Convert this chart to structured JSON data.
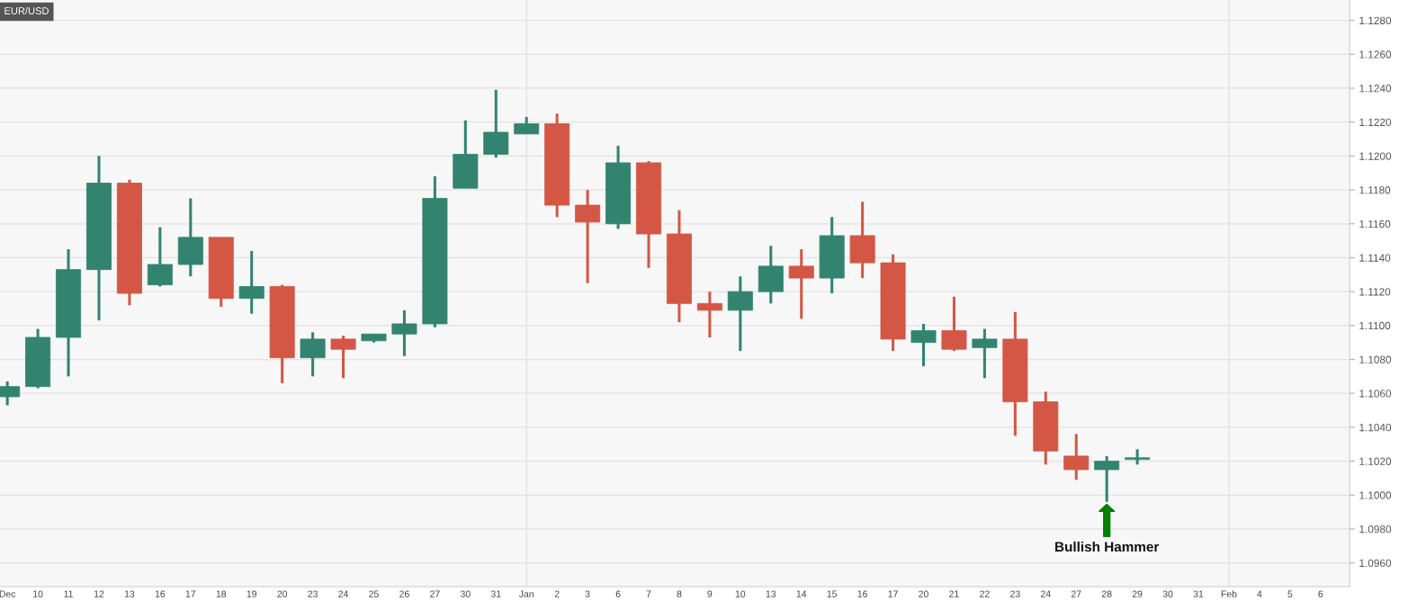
{
  "chart_data": {
    "type": "candlestick",
    "title": "EUR/USD",
    "categories": [
      "Dec",
      "10",
      "11",
      "12",
      "13",
      "16",
      "17",
      "18",
      "19",
      "20",
      "23",
      "24",
      "25",
      "26",
      "27",
      "30",
      "31",
      "Jan",
      "2",
      "3",
      "6",
      "7",
      "8",
      "9",
      "10",
      "13",
      "14",
      "15",
      "16",
      "17",
      "20",
      "21",
      "22",
      "23",
      "24",
      "27",
      "28",
      "29",
      "30",
      "31",
      "Feb",
      "4",
      "5",
      "6"
    ],
    "ohlc": [
      [
        1.1058,
        1.1067,
        1.1053,
        1.1064
      ],
      [
        1.1064,
        1.1098,
        1.1063,
        1.1093
      ],
      [
        1.1093,
        1.1145,
        1.107,
        1.1133
      ],
      [
        1.1133,
        1.12,
        1.1103,
        1.1184
      ],
      [
        1.1184,
        1.1186,
        1.1112,
        1.1119
      ],
      [
        1.1124,
        1.1158,
        1.1123,
        1.1136
      ],
      [
        1.1136,
        1.1175,
        1.1129,
        1.1152
      ],
      [
        1.1152,
        1.1152,
        1.1111,
        1.1116
      ],
      [
        1.1116,
        1.1144,
        1.1107,
        1.1123
      ],
      [
        1.1123,
        1.1124,
        1.1066,
        1.1081
      ],
      [
        1.1081,
        1.1096,
        1.107,
        1.1092
      ],
      [
        1.1092,
        1.1094,
        1.1069,
        1.1086
      ],
      [
        1.1091,
        1.1095,
        1.109,
        1.1095
      ],
      [
        1.1095,
        1.1109,
        1.1082,
        1.1101
      ],
      [
        1.1101,
        1.1188,
        1.1099,
        1.1175
      ],
      [
        1.1181,
        1.1221,
        1.1181,
        1.1201
      ],
      [
        1.1201,
        1.1239,
        1.1199,
        1.1214
      ],
      [
        1.1213,
        1.1223,
        1.1213,
        1.1219
      ],
      [
        1.1219,
        1.1225,
        1.1164,
        1.1171
      ],
      [
        1.1171,
        1.118,
        1.1125,
        1.1161
      ],
      [
        1.116,
        1.1206,
        1.1157,
        1.1196
      ],
      [
        1.1196,
        1.1197,
        1.1134,
        1.1154
      ],
      [
        1.1154,
        1.1168,
        1.1102,
        1.1113
      ],
      [
        1.1113,
        1.112,
        1.1093,
        1.1109
      ],
      [
        1.1109,
        1.1129,
        1.1085,
        1.112
      ],
      [
        1.112,
        1.1147,
        1.1113,
        1.1135
      ],
      [
        1.1135,
        1.1145,
        1.1104,
        1.1128
      ],
      [
        1.1128,
        1.1164,
        1.1119,
        1.1153
      ],
      [
        1.1153,
        1.1173,
        1.1128,
        1.1137
      ],
      [
        1.1137,
        1.1142,
        1.1085,
        1.1092
      ],
      [
        1.109,
        1.1101,
        1.1076,
        1.1097
      ],
      [
        1.1097,
        1.1117,
        1.1085,
        1.1086
      ],
      [
        1.1087,
        1.1098,
        1.1069,
        1.1092
      ],
      [
        1.1092,
        1.1108,
        1.1035,
        1.1055
      ],
      [
        1.1055,
        1.1061,
        1.1018,
        1.1026
      ],
      [
        1.1023,
        1.1036,
        1.1009,
        1.1015
      ],
      [
        1.1015,
        1.1023,
        1.0996,
        1.102
      ],
      [
        1.1021,
        1.1027,
        1.1018,
        1.1022
      ],
      null,
      null,
      null,
      null,
      null,
      null
    ],
    "colors": [
      "#32846f",
      "#32846f",
      "#32846f",
      "#32846f",
      "#d45745",
      "#32846f",
      "#32846f",
      "#d45745",
      "#32846f",
      "#d45745",
      "#32846f",
      "#d45745",
      "#32846f",
      "#32846f",
      "#32846f",
      "#32846f",
      "#32846f",
      "#32846f",
      "#d45745",
      "#d45745",
      "#32846f",
      "#d45745",
      "#d45745",
      "#d45745",
      "#32846f",
      "#32846f",
      "#d45745",
      "#32846f",
      "#d45745",
      "#d45745",
      "#32846f",
      "#d45745",
      "#32846f",
      "#d45745",
      "#d45745",
      "#d45745",
      "#32846f",
      "#32846f",
      null,
      null,
      null,
      null,
      null,
      null
    ],
    "ylim": [
      1.0946,
      1.1292
    ],
    "yticks": [
      {
        "value": 1.096,
        "label": "1.0960"
      },
      {
        "value": 1.098,
        "label": "1.0980"
      },
      {
        "value": 1.1,
        "label": "1.1000"
      },
      {
        "value": 1.102,
        "label": "1.1020"
      },
      {
        "value": 1.104,
        "label": "1.1040"
      },
      {
        "value": 1.106,
        "label": "1.1060"
      },
      {
        "value": 1.108,
        "label": "1.1080"
      },
      {
        "value": 1.11,
        "label": "1.1100"
      },
      {
        "value": 1.112,
        "label": "1.1120"
      },
      {
        "value": 1.114,
        "label": "1.1140"
      },
      {
        "value": 1.116,
        "label": "1.1160"
      },
      {
        "value": 1.118,
        "label": "1.1180"
      },
      {
        "value": 1.12,
        "label": "1.1200"
      },
      {
        "value": 1.122,
        "label": "1.1220"
      },
      {
        "value": 1.124,
        "label": "1.1240"
      },
      {
        "value": 1.126,
        "label": "1.1260"
      },
      {
        "value": 1.128,
        "label": "1.1280"
      }
    ],
    "grid": "y",
    "ref_lines": [
      {
        "axis": "x",
        "value": "Jan",
        "color": "#e2e2e2"
      },
      {
        "axis": "x",
        "value": "Feb",
        "color": "#e2e2e2"
      }
    ],
    "annotations": [
      {
        "text": "Bullish Hammer",
        "x": "28",
        "y": 1.0996
      }
    ]
  }
}
